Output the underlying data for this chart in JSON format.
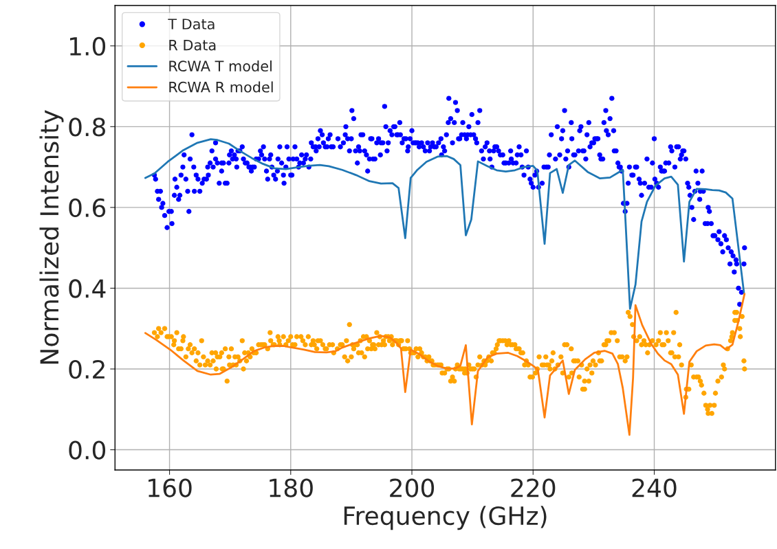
{
  "chart_data": {
    "type": "scatter",
    "xlabel": "Frequency (GHz)",
    "ylabel": "Normalized Intensity",
    "xlim": [
      151,
      260
    ],
    "xticks": [
      160,
      180,
      200,
      220,
      240
    ],
    "ylim": [
      -0.05,
      1.1
    ],
    "yticks": [
      {
        "value": 0,
        "label": "0.0"
      },
      0.2,
      0.4,
      0.6,
      0.8,
      {
        "value": 1,
        "label": "1.0"
      }
    ],
    "grid": true,
    "legend": "top left",
    "series": [
      {
        "name": "T Data",
        "marker": "circle",
        "color": "#0000ff",
        "x": [
          157.5,
          157.7,
          158.0,
          158.5,
          158.2,
          158.9,
          158.7,
          159.2,
          159.9,
          160.3,
          159.6,
          160.4,
          160.9,
          161.2,
          160.8,
          161.7,
          161.5,
          161.9,
          162.2,
          162.4,
          162.7,
          163.0,
          163.2,
          163.4,
          163.7,
          164.0,
          164.1,
          164.4,
          164.7,
          165.0,
          165.4,
          165.7,
          166.1,
          166.4,
          166.3,
          166.7,
          167.0,
          167.2,
          167.6,
          167.6,
          167.9,
          168.2,
          168.6,
          168.6,
          168.9,
          169.2,
          169.5,
          169.8,
          169.9,
          170.2,
          170.4,
          170.7,
          171.0,
          171.1,
          171.3,
          171.6,
          172.0,
          172.2,
          172.5,
          172.8,
          173.1,
          173.3,
          173.5,
          173.7,
          174.0,
          174.3,
          174.7,
          175.0,
          175.2,
          175.5,
          175.7,
          176.0,
          176.2,
          176.5,
          176.7,
          176.9,
          177.2,
          177.5,
          177.8,
          177.9,
          178.2,
          178.5,
          178.8,
          178.9,
          179.2,
          179.4,
          179.7,
          180.0,
          180.2,
          180.4,
          180.7,
          181.0,
          181.3,
          181.5,
          181.8,
          182.1,
          182.4,
          182.6,
          183.0,
          183.3,
          183.4,
          183.7,
          184.1,
          184.2,
          184.5,
          184.7,
          184.9,
          185.2,
          185.4,
          185.7,
          186.0,
          186.2,
          186.5,
          186.7,
          187.0,
          187.8,
          188.2,
          188.7,
          189.0,
          189.1,
          189.4,
          189.7,
          190.0,
          190.1,
          190.4,
          190.7,
          191.0,
          191.2,
          191.4,
          191.6,
          191.9,
          192.2,
          192.5,
          192.7,
          193.0,
          193.2,
          193.4,
          193.6,
          193.9,
          194.2,
          194.5,
          194.8,
          194.9,
          195.2,
          195.5,
          195.7,
          195.9,
          196.1,
          196.4,
          196.7,
          197.0,
          197.2,
          197.5,
          197.7,
          198.0,
          198.1,
          198.4,
          198.7,
          199.0,
          199.3,
          199.4,
          199.7,
          200.0,
          200.2,
          200.5,
          200.7,
          201.0,
          201.2,
          201.6,
          201.9,
          202.2,
          202.6,
          202.9,
          203.1,
          203.4,
          203.7,
          204.0,
          204.4,
          204.8,
          204.9,
          205.2,
          205.4,
          205.7,
          206.0,
          206.1,
          206.4,
          206.7,
          207.0,
          207.2,
          207.5,
          207.7,
          207.9,
          208.2,
          208.4,
          208.7,
          209.0,
          209.2,
          209.4,
          209.7,
          209.9,
          210.2,
          210.5,
          210.7,
          210.9,
          211.2,
          211.5,
          211.8,
          212.1,
          212.4,
          212.8,
          212.9,
          213.2,
          213.5,
          213.7,
          214.0,
          214.3,
          214.6,
          215.0,
          215.2,
          215.5,
          216.0,
          216.3,
          216.4,
          216.7,
          217.2,
          217.4,
          217.7,
          218.0,
          218.2,
          218.5,
          218.9,
          219.2,
          219.5,
          219.7,
          220.0,
          220.3,
          220.6,
          220.9,
          221.5,
          221.8,
          222.2,
          222.5,
          222.7,
          223.0,
          223.7,
          224.0,
          224.4,
          224.7,
          224.9,
          225.2,
          225.4,
          225.7,
          225.9,
          226.3,
          226.4,
          226.7,
          226.9,
          227.5,
          227.7,
          227.9,
          228.2,
          228.4,
          228.7,
          228.9,
          229.2,
          229.4,
          229.7,
          230.0,
          230.2,
          230.5,
          230.7,
          231.0,
          231.2,
          231.5,
          231.7,
          232.0,
          232.1,
          232.4,
          232.7,
          233.0,
          233.3,
          233.4,
          233.7,
          234.0,
          234.2,
          234.4,
          234.6,
          234.9,
          235.2,
          235.5,
          235.7,
          235.9,
          236.3,
          236.5,
          236.9,
          237.1,
          237.5,
          237.7,
          237.9,
          238.4,
          238.8,
          239.1,
          239.5,
          239.7,
          240.0,
          240.1,
          240.4,
          240.7,
          241.0,
          241.2,
          241.5,
          241.7,
          241.9,
          242.4,
          242.7,
          242.9,
          243.4,
          243.7,
          244.0,
          244.3,
          244.5,
          244.7,
          244.9,
          245.2,
          245.5,
          245.7,
          245.9,
          246.2,
          246.5,
          246.7,
          246.9,
          247.2,
          247.5,
          247.6,
          247.9,
          248.1,
          248.4,
          248.8,
          248.9,
          249.1,
          249.4,
          249.7,
          250.0,
          250.5,
          250.7,
          251.0,
          251.3,
          251.6,
          251.9,
          252.2,
          252.5,
          252.7,
          253.0,
          253.2,
          253.5,
          253.6,
          253.9,
          254.1,
          254.4,
          254.8,
          254.9
        ],
        "values": [
          0.68,
          0.67,
          0.64,
          0.64,
          0.62,
          0.61,
          0.6,
          0.58,
          0.59,
          0.59,
          0.55,
          0.56,
          0.67,
          0.65,
          0.63,
          0.63,
          0.62,
          0.68,
          0.7,
          0.73,
          0.67,
          0.64,
          0.59,
          0.72,
          0.78,
          0.7,
          0.64,
          0.68,
          0.67,
          0.64,
          0.66,
          0.67,
          0.67,
          0.68,
          0.7,
          0.71,
          0.74,
          0.7,
          0.72,
          0.76,
          0.71,
          0.66,
          0.69,
          0.71,
          0.71,
          0.66,
          0.66,
          0.71,
          0.73,
          0.74,
          0.72,
          0.73,
          0.72,
          0.7,
          0.74,
          0.74,
          0.75,
          0.72,
          0.71,
          0.71,
          0.7,
          0.7,
          0.69,
          0.7,
          0.7,
          0.72,
          0.72,
          0.74,
          0.73,
          0.75,
          0.72,
          0.69,
          0.67,
          0.72,
          0.73,
          0.7,
          0.68,
          0.67,
          0.69,
          0.72,
          0.75,
          0.71,
          0.68,
          0.66,
          0.7,
          0.75,
          0.72,
          0.68,
          0.68,
          0.72,
          0.75,
          0.72,
          0.7,
          0.71,
          0.73,
          0.71,
          0.72,
          0.73,
          0.7,
          0.72,
          0.76,
          0.75,
          0.75,
          0.74,
          0.77,
          0.75,
          0.79,
          0.78,
          0.76,
          0.75,
          0.75,
          0.77,
          0.78,
          0.75,
          0.75,
          0.77,
          0.75,
          0.76,
          0.78,
          0.8,
          0.77,
          0.74,
          0.77,
          0.84,
          0.82,
          0.74,
          0.71,
          0.75,
          0.74,
          0.78,
          0.78,
          0.74,
          0.73,
          0.69,
          0.72,
          0.77,
          0.77,
          0.72,
          0.72,
          0.76,
          0.77,
          0.73,
          0.76,
          0.76,
          0.85,
          0.8,
          0.74,
          0.76,
          0.79,
          0.78,
          0.8,
          0.8,
          0.78,
          0.78,
          0.81,
          0.78,
          0.76,
          0.77,
          0.77,
          0.74,
          0.75,
          0.77,
          0.79,
          0.76,
          0.76,
          0.76,
          0.76,
          0.75,
          0.76,
          0.75,
          0.74,
          0.76,
          0.74,
          0.75,
          0.76,
          0.75,
          0.75,
          0.76,
          0.77,
          0.73,
          0.75,
          0.74,
          0.78,
          0.81,
          0.87,
          0.82,
          0.76,
          0.81,
          0.86,
          0.84,
          0.77,
          0.77,
          0.78,
          0.81,
          0.78,
          0.77,
          0.78,
          0.8,
          0.78,
          0.83,
          0.78,
          0.77,
          0.76,
          0.81,
          0.84,
          0.74,
          0.72,
          0.75,
          0.76,
          0.74,
          0.72,
          0.7,
          0.74,
          0.75,
          0.75,
          0.74,
          0.73,
          0.73,
          0.71,
          0.71,
          0.71,
          0.74,
          0.72,
          0.71,
          0.71,
          0.73,
          0.75,
          0.73,
          0.7,
          0.68,
          0.74,
          0.7,
          0.67,
          0.66,
          0.65,
          0.68,
          0.69,
          0.65,
          0.66,
          0.7,
          0.7,
          0.7,
          0.73,
          0.78,
          0.72,
          0.8,
          0.73,
          0.77,
          0.79,
          0.84,
          0.72,
          0.74,
          0.7,
          0.81,
          0.77,
          0.73,
          0.73,
          0.74,
          0.79,
          0.8,
          0.74,
          0.74,
          0.72,
          0.78,
          0.81,
          0.75,
          0.76,
          0.76,
          0.77,
          0.77,
          0.77,
          0.73,
          0.72,
          0.72,
          0.81,
          0.84,
          0.79,
          0.78,
          0.82,
          0.87,
          0.79,
          0.74,
          0.74,
          0.71,
          0.7,
          0.7,
          0.69,
          0.61,
          0.59,
          0.61,
          0.66,
          0.7,
          0.68,
          0.68,
          0.7,
          0.7,
          0.67,
          0.66,
          0.63,
          0.66,
          0.72,
          0.65,
          0.65,
          0.71,
          0.77,
          0.67,
          0.66,
          0.65,
          0.7,
          0.69,
          0.69,
          0.69,
          0.71,
          0.71,
          0.75,
          0.74,
          0.7,
          0.75,
          0.75,
          0.72,
          0.73,
          0.74,
          0.74,
          0.72,
          0.66,
          0.65,
          0.63,
          0.6,
          0.57,
          0.64,
          0.69,
          0.66,
          0.62,
          0.64,
          0.69,
          0.64,
          0.56,
          0.56,
          0.6,
          0.59,
          0.56,
          0.53,
          0.53,
          0.52,
          0.54,
          0.51,
          0.49,
          0.53,
          0.52,
          0.5,
          0.46,
          0.49,
          0.48,
          0.44,
          0.47,
          0.46,
          0.4,
          0.36,
          0.39,
          0.46,
          0.5
        ]
      },
      {
        "name": "R Data",
        "marker": "circle",
        "color": "#ffa500",
        "x": [
          157.5,
          158.0,
          158.2,
          158.6,
          159.2,
          159.6,
          159.9,
          160.3,
          160.8,
          160.7,
          161.2,
          161.5,
          161.9,
          162.3,
          162.2,
          162.7,
          163.1,
          163.4,
          163.7,
          164.1,
          164.4,
          164.7,
          165.0,
          165.3,
          165.6,
          165.9,
          166.3,
          166.7,
          167.0,
          167.2,
          167.6,
          167.7,
          167.9,
          168.3,
          168.6,
          168.7,
          168.9,
          169.2,
          169.5,
          169.8,
          169.9,
          170.2,
          170.5,
          170.8,
          171.0,
          171.3,
          171.6,
          172.0,
          172.2,
          172.4,
          172.7,
          173.0,
          173.3,
          173.6,
          173.9,
          174.3,
          174.7,
          175.1,
          175.4,
          175.7,
          176.2,
          176.6,
          176.7,
          177.1,
          177.3,
          177.9,
          178.1,
          178.2,
          178.8,
          179.2,
          179.6,
          180.0,
          180.3,
          180.7,
          181.0,
          181.7,
          182.0,
          182.4,
          182.9,
          183.4,
          183.7,
          183.9,
          184.3,
          184.5,
          184.9,
          185.3,
          185.7,
          185.9,
          186.4,
          186.9,
          187.1,
          187.7,
          188.2,
          188.5,
          188.9,
          189.2,
          189.4,
          189.7,
          190.0,
          190.2,
          190.4,
          190.7,
          191.0,
          191.2,
          191.5,
          191.7,
          192.0,
          192.2,
          192.5,
          192.7,
          193.0,
          193.3,
          193.5,
          193.7,
          193.9,
          194.2,
          194.5,
          194.7,
          195.0,
          195.3,
          195.5,
          195.7,
          196.1,
          196.3,
          196.6,
          196.8,
          197.1,
          197.3,
          197.5,
          197.8,
          198.0,
          198.2,
          198.3,
          198.6,
          198.8,
          199.0,
          199.3,
          199.6,
          199.8,
          200.1,
          200.4,
          200.7,
          201.0,
          201.3,
          201.6,
          201.9,
          202.2,
          202.5,
          202.8,
          203.0,
          203.3,
          203.5,
          203.8,
          204.2,
          204.5,
          204.8,
          205.0,
          205.4,
          205.8,
          206.1,
          206.4,
          206.7,
          207.0,
          207.2,
          207.5,
          207.8,
          208.1,
          208.4,
          208.7,
          208.8,
          209.1,
          209.4,
          209.7,
          210.0,
          210.3,
          210.6,
          210.9,
          211.2,
          211.6,
          211.9,
          212.1,
          212.4,
          212.7,
          213.1,
          213.3,
          213.6,
          213.9,
          214.1,
          214.4,
          214.6,
          215.0,
          215.4,
          215.7,
          216.0,
          216.3,
          216.6,
          217.0,
          217.2,
          217.5,
          217.7,
          218.0,
          218.3,
          218.6,
          218.9,
          219.2,
          219.5,
          219.9,
          220.4,
          220.7,
          221.0,
          221.5,
          221.8,
          222.1,
          222.3,
          222.6,
          222.8,
          223.1,
          223.3,
          223.6,
          224.1,
          224.6,
          224.9,
          225.2,
          225.6,
          225.9,
          226.3,
          226.4,
          226.7,
          227.0,
          227.4,
          227.6,
          228.0,
          228.2,
          228.5,
          228.5,
          228.9,
          229.2,
          229.4,
          229.7,
          229.9,
          230.3,
          230.8,
          231.0,
          231.3,
          231.7,
          232.0,
          232.2,
          232.5,
          232.9,
          233.4,
          233.9,
          234.3,
          234.7,
          235.2,
          235.5,
          235.7,
          236.0,
          236.4,
          236.6,
          237.1,
          237.6,
          237.9,
          238.3,
          238.6,
          238.9,
          239.2,
          239.7,
          240.3,
          240.7,
          241.0,
          241.3,
          241.6,
          242.0,
          242.3,
          242.7,
          242.9,
          243.2,
          243.4,
          243.6,
          244.0,
          244.2,
          244.5,
          245.2,
          245.3,
          245.7,
          246.1,
          246.5,
          247.0,
          247.3,
          247.6,
          247.8,
          248.2,
          248.5,
          248.8,
          248.9,
          249.2,
          249.5,
          249.9,
          250.1,
          250.5,
          251.1,
          251.4,
          251.6,
          252.1,
          252.6,
          252.8,
          252.9,
          253.3,
          253.3,
          253.6,
          253.7,
          254.1,
          254.5,
          254.2,
          254.8,
          254.9
        ],
        "values": [
          0.29,
          0.28,
          0.3,
          0.29,
          0.3,
          0.28,
          0.28,
          0.28,
          0.27,
          0.26,
          0.29,
          0.25,
          0.25,
          0.28,
          0.27,
          0.23,
          0.25,
          0.26,
          0.24,
          0.25,
          0.22,
          0.24,
          0.21,
          0.27,
          0.23,
          0.21,
          0.22,
          0.21,
          0.24,
          0.22,
          0.24,
          0.2,
          0.23,
          0.23,
          0.24,
          0.2,
          0.2,
          0.25,
          0.17,
          0.23,
          0.21,
          0.25,
          0.21,
          0.23,
          0.21,
          0.23,
          0.22,
          0.27,
          0.2,
          0.24,
          0.22,
          0.24,
          0.23,
          0.25,
          0.24,
          0.24,
          0.26,
          0.26,
          0.26,
          0.26,
          0.25,
          0.29,
          0.27,
          0.26,
          0.26,
          0.28,
          0.27,
          0.26,
          0.28,
          0.26,
          0.27,
          0.28,
          0.26,
          0.26,
          0.28,
          0.28,
          0.27,
          0.26,
          0.28,
          0.26,
          0.27,
          0.26,
          0.25,
          0.27,
          0.27,
          0.26,
          0.25,
          0.25,
          0.26,
          0.26,
          0.24,
          0.25,
          0.26,
          0.26,
          0.23,
          0.27,
          0.22,
          0.31,
          0.23,
          0.26,
          0.25,
          0.26,
          0.26,
          0.24,
          0.27,
          0.24,
          0.28,
          0.23,
          0.28,
          0.25,
          0.27,
          0.25,
          0.26,
          0.26,
          0.25,
          0.29,
          0.26,
          0.28,
          0.26,
          0.27,
          0.26,
          0.28,
          0.28,
          0.27,
          0.28,
          0.26,
          0.27,
          0.27,
          0.27,
          0.26,
          0.27,
          0.27,
          0.27,
          0.25,
          0.25,
          0.25,
          0.27,
          0.25,
          0.24,
          0.24,
          0.24,
          0.25,
          0.23,
          0.25,
          0.24,
          0.23,
          0.23,
          0.22,
          0.23,
          0.22,
          0.22,
          0.21,
          0.21,
          0.21,
          0.21,
          0.21,
          0.19,
          0.19,
          0.2,
          0.2,
          0.17,
          0.18,
          0.17,
          0.2,
          0.21,
          0.2,
          0.2,
          0.2,
          0.19,
          0.2,
          0.19,
          0.21,
          0.2,
          0.2,
          0.2,
          0.18,
          0.21,
          0.23,
          0.21,
          0.22,
          0.21,
          0.22,
          0.23,
          0.22,
          0.24,
          0.24,
          0.25,
          0.26,
          0.27,
          0.27,
          0.27,
          0.27,
          0.26,
          0.27,
          0.26,
          0.26,
          0.26,
          0.25,
          0.25,
          0.25,
          0.24,
          0.24,
          0.21,
          0.22,
          0.21,
          0.18,
          0.18,
          0.19,
          0.2,
          0.23,
          0.21,
          0.21,
          0.23,
          0.21,
          0.21,
          0.2,
          0.22,
          0.24,
          0.2,
          0.21,
          0.23,
          0.19,
          0.26,
          0.26,
          0.18,
          0.25,
          0.19,
          0.22,
          0.22,
          0.22,
          0.18,
          0.21,
          0.15,
          0.15,
          0.17,
          0.2,
          0.17,
          0.21,
          0.19,
          0.22,
          0.21,
          0.24,
          0.22,
          0.22,
          0.26,
          0.26,
          0.27,
          0.27,
          0.29,
          0.29,
          0.27,
          0.23,
          0.23,
          0.22,
          0.23,
          0.34,
          0.33,
          0.31,
          0.28,
          0.27,
          0.28,
          0.26,
          0.27,
          0.26,
          0.24,
          0.26,
          0.27,
          0.26,
          0.27,
          0.29,
          0.26,
          0.26,
          0.29,
          0.27,
          0.24,
          0.24,
          0.29,
          0.23,
          0.34,
          0.23,
          0.26,
          0.21,
          0.13,
          0.15,
          0.15,
          0.21,
          0.18,
          0.18,
          0.18,
          0.17,
          0.16,
          0.14,
          0.11,
          0.1,
          0.09,
          0.11,
          0.09,
          0.11,
          0.14,
          0.17,
          0.18,
          0.21,
          0.2,
          0.25,
          0.27,
          0.28,
          0.29,
          0.32,
          0.34,
          0.34,
          0.32,
          0.3,
          0.33,
          0.28,
          0.22,
          0.2
        ]
      },
      {
        "name": "RCWA T model",
        "type": "line",
        "line_style": "solid",
        "color": "#1f77b4",
        "x": [
          156.0,
          157.5,
          159.7,
          162.3,
          164.6,
          166.8,
          167.9,
          169.8,
          171.7,
          173.6,
          175.4,
          177.3,
          179.2,
          181.0,
          182.9,
          184.8,
          186.3,
          188.5,
          190.8,
          193.0,
          194.9,
          196.8,
          197.8,
          198.9,
          199.8,
          200.9,
          202.4,
          204.3,
          205.8,
          206.9,
          208.0,
          208.9,
          209.8,
          210.9,
          212.5,
          214.0,
          215.5,
          217.0,
          218.5,
          220.0,
          220.7,
          221.9,
          222.8,
          223.9,
          224.9,
          225.9,
          226.9,
          229.0,
          231.0,
          232.7,
          234.8,
          235.1,
          236.0,
          236.9,
          237.9,
          238.8,
          240.2,
          241.7,
          242.8,
          243.9,
          244.9,
          245.8,
          247.0,
          248.5,
          249.6,
          250.7,
          251.8,
          252.9,
          254.8
        ],
        "values": [
          0.673,
          0.684,
          0.713,
          0.742,
          0.76,
          0.769,
          0.767,
          0.758,
          0.739,
          0.722,
          0.708,
          0.697,
          0.695,
          0.699,
          0.703,
          0.705,
          0.702,
          0.693,
          0.68,
          0.665,
          0.659,
          0.66,
          0.648,
          0.524,
          0.673,
          0.693,
          0.713,
          0.726,
          0.727,
          0.72,
          0.705,
          0.531,
          0.57,
          0.714,
          0.702,
          0.692,
          0.689,
          0.692,
          0.7,
          0.703,
          0.691,
          0.51,
          0.685,
          0.695,
          0.636,
          0.705,
          0.716,
          0.688,
          0.672,
          0.674,
          0.693,
          0.611,
          0.349,
          0.409,
          0.565,
          0.614,
          0.654,
          0.672,
          0.676,
          0.656,
          0.466,
          0.614,
          0.646,
          0.645,
          0.643,
          0.642,
          0.637,
          0.622,
          0.389
        ]
      },
      {
        "name": "RCWA R model",
        "type": "line",
        "line_style": "solid",
        "color": "#ff7f0e",
        "x": [
          156.0,
          157.8,
          160.1,
          162.3,
          164.6,
          166.8,
          168.3,
          170.2,
          172.1,
          173.9,
          175.8,
          177.3,
          178.8,
          180.3,
          182.2,
          184.0,
          185.9,
          187.4,
          188.5,
          190.8,
          193.0,
          194.9,
          196.4,
          197.5,
          198.2,
          198.9,
          199.8,
          201.3,
          202.8,
          204.3,
          205.8,
          207.1,
          208.0,
          208.9,
          209.9,
          210.9,
          212.5,
          214.0,
          215.9,
          217.4,
          218.9,
          220.0,
          220.8,
          221.9,
          222.8,
          224.9,
          225.9,
          226.9,
          228.6,
          230.1,
          231.8,
          233.1,
          234.0,
          234.8,
          235.9,
          236.5,
          236.9,
          238.0,
          239.5,
          240.6,
          241.7,
          242.8,
          243.9,
          244.9,
          245.8,
          247.0,
          248.5,
          249.9,
          250.9,
          251.8,
          252.9,
          253.9,
          254.9
        ],
        "values": [
          0.289,
          0.272,
          0.248,
          0.221,
          0.195,
          0.186,
          0.188,
          0.204,
          0.224,
          0.244,
          0.254,
          0.257,
          0.257,
          0.253,
          0.248,
          0.242,
          0.241,
          0.244,
          0.253,
          0.265,
          0.276,
          0.282,
          0.278,
          0.264,
          0.251,
          0.143,
          0.248,
          0.236,
          0.219,
          0.207,
          0.201,
          0.201,
          0.208,
          0.259,
          0.063,
          0.195,
          0.229,
          0.238,
          0.24,
          0.232,
          0.219,
          0.208,
          0.198,
          0.08,
          0.184,
          0.221,
          0.138,
          0.198,
          0.224,
          0.24,
          0.245,
          0.238,
          0.212,
          0.153,
          0.037,
          0.178,
          0.358,
          0.309,
          0.262,
          0.238,
          0.221,
          0.212,
          0.186,
          0.089,
          0.218,
          0.244,
          0.258,
          0.261,
          0.259,
          0.248,
          0.26,
          0.318,
          0.386
        ]
      }
    ]
  }
}
